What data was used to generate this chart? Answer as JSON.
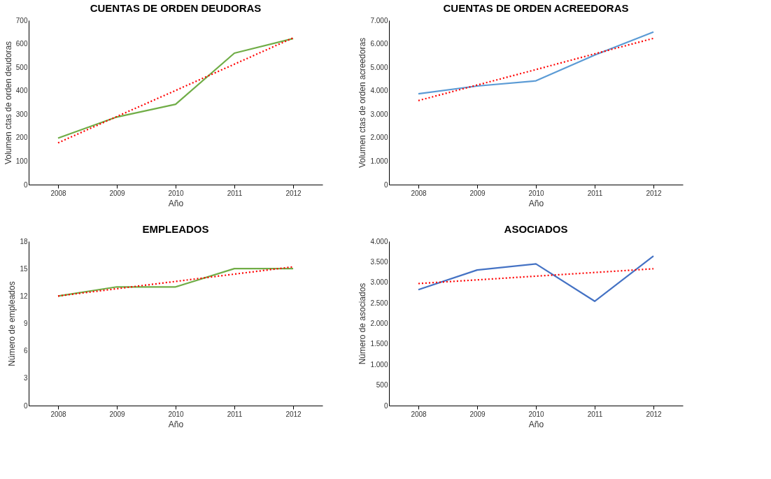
{
  "chart_data": [
    {
      "type": "line",
      "title": "CUENTAS DE ORDEN DEUDORAS",
      "xlabel": "Año",
      "ylabel": "Volumen ctas de orden deudoras",
      "categories": [
        "2008",
        "2009",
        "2010",
        "2011",
        "2012"
      ],
      "ylim": [
        0,
        700
      ],
      "yticks": [
        0,
        100,
        200,
        300,
        400,
        500,
        600,
        700
      ],
      "grid": false,
      "marker": "none",
      "series": [
        {
          "color": "#70ad47",
          "line_style": "solid",
          "values": [
            198,
            288,
            342,
            560,
            622
          ]
        },
        {
          "color": "#ff0000",
          "line_style": "dotted",
          "values": [
            178,
            290,
            401,
            513,
            625
          ]
        }
      ]
    },
    {
      "type": "line",
      "title": "CUENTAS DE ORDEN ACREEDORAS",
      "xlabel": "Año",
      "ylabel": "Volumen ctas de orden acreedoras",
      "categories": [
        "2008",
        "2009",
        "2010",
        "2011",
        "2012"
      ],
      "ylim": [
        0,
        7000
      ],
      "yticks": [
        0,
        {
          "value": 1000,
          "label": "1.000"
        },
        {
          "value": 2000,
          "label": "2.000"
        },
        {
          "value": 3000,
          "label": "3.000"
        },
        {
          "value": 4000,
          "label": "4.000"
        },
        {
          "value": 5000,
          "label": "5.000"
        },
        {
          "value": 6000,
          "label": "6.000"
        },
        {
          "value": 7000,
          "label": "7.000"
        }
      ],
      "grid": false,
      "marker": "none",
      "series": [
        {
          "color": "#5b9bd5",
          "line_style": "solid",
          "values": [
            3870,
            4200,
            4420,
            5520,
            6500
          ]
        },
        {
          "color": "#ff0000",
          "line_style": "dotted",
          "values": [
            3580,
            4240,
            4900,
            5570,
            6230
          ]
        }
      ]
    },
    {
      "type": "line",
      "title": "EMPLEADOS",
      "xlabel": "Año",
      "ylabel": "Número de empleados",
      "categories": [
        "2008",
        "2009",
        "2010",
        "2011",
        "2012"
      ],
      "ylim": [
        0,
        18
      ],
      "yticks": [
        0,
        3,
        6,
        9,
        12,
        15,
        18
      ],
      "grid": false,
      "marker": "none",
      "series": [
        {
          "color": "#70ad47",
          "line_style": "solid",
          "values": [
            12,
            13,
            13,
            15,
            15
          ]
        },
        {
          "color": "#ff0000",
          "line_style": "dotted",
          "values": [
            12,
            12.8,
            13.6,
            14.4,
            15.2
          ]
        }
      ]
    },
    {
      "type": "line",
      "title": "ASOCIADOS",
      "xlabel": "Año",
      "ylabel": "Número de asociados",
      "categories": [
        "2008",
        "2009",
        "2010",
        "2011",
        "2012"
      ],
      "ylim": [
        0,
        4000
      ],
      "yticks": [
        0,
        500,
        {
          "value": 1000,
          "label": "1.000"
        },
        {
          "value": 1500,
          "label": "1.500"
        },
        {
          "value": 2000,
          "label": "2.000"
        },
        {
          "value": 2500,
          "label": "2.500"
        },
        {
          "value": 3000,
          "label": "3.000"
        },
        {
          "value": 3500,
          "label": "3.500"
        },
        {
          "value": 4000,
          "label": "4.000"
        }
      ],
      "grid": false,
      "marker": "none",
      "series": [
        {
          "color": "#4472c4",
          "line_style": "solid",
          "values": [
            2820,
            3300,
            3450,
            2540,
            3640
          ]
        },
        {
          "color": "#ff0000",
          "line_style": "dotted",
          "values": [
            2970,
            3060,
            3150,
            3240,
            3330
          ]
        }
      ]
    }
  ]
}
